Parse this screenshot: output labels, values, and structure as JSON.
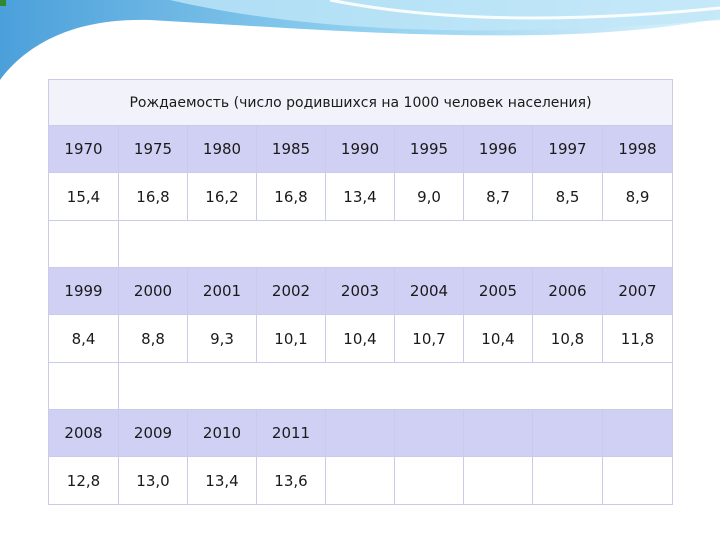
{
  "title": "Рождаемость (число родившихся на 1000 человек населения)",
  "blocks": [
    {
      "years": [
        "1970",
        "1975",
        "1980",
        "1985",
        "1990",
        "1995",
        "1996",
        "1997",
        "1998"
      ],
      "values": [
        "15,4",
        "16,8",
        "16,2",
        "16,8",
        "13,4",
        "9,0",
        "8,7",
        "8,5",
        "8,9"
      ]
    },
    {
      "years": [
        "1999",
        "2000",
        "2001",
        "2002",
        "2003",
        "2004",
        "2005",
        "2006",
        "2007"
      ],
      "values": [
        "8,4",
        "8,8",
        "9,3",
        "10,1",
        "10,4",
        "10,7",
        "10,4",
        "10,8",
        "11,8"
      ]
    },
    {
      "years": [
        "2008",
        "2009",
        "2010",
        "2011",
        "",
        "",
        "",
        "",
        ""
      ],
      "values": [
        "12,8",
        "13,0",
        "13,4",
        "13,6",
        "",
        "",
        "",
        "",
        ""
      ]
    }
  ]
}
